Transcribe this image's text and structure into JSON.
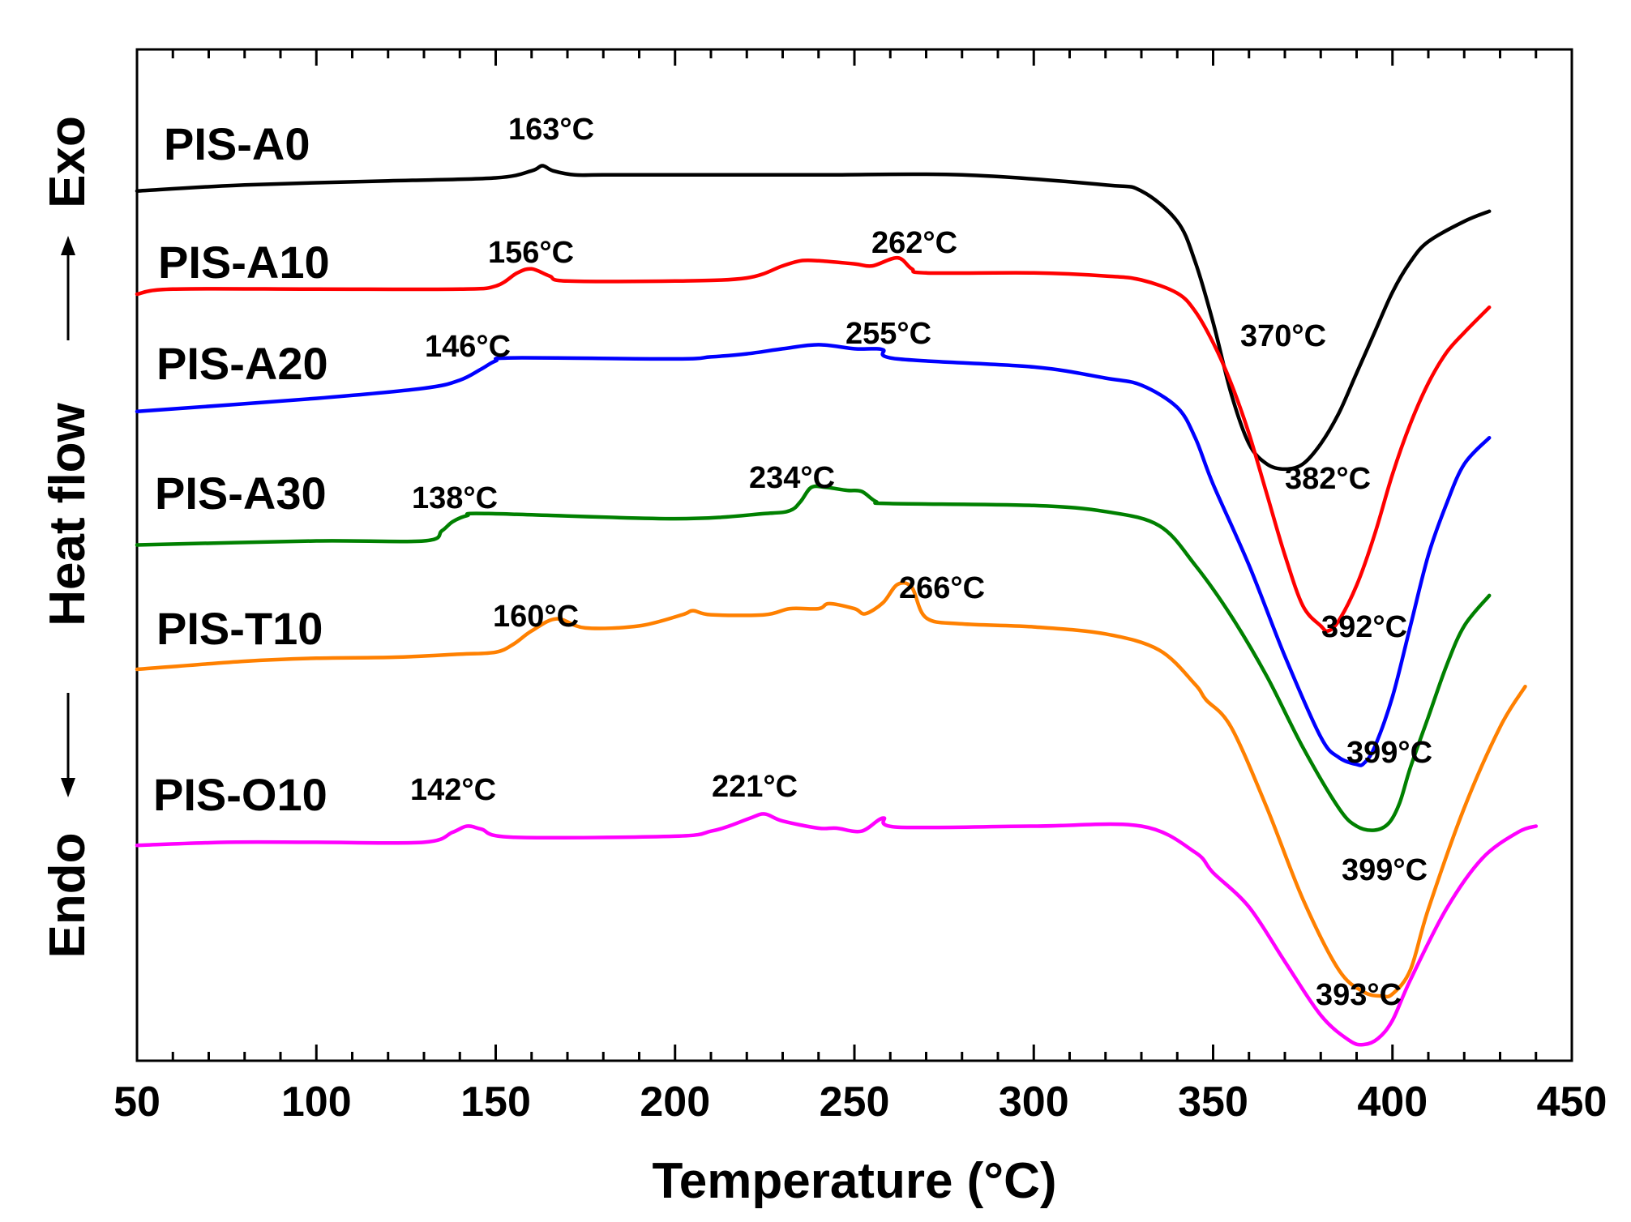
{
  "chart_data": {
    "type": "line",
    "title": "",
    "xlabel": "Temperature (°C)",
    "ylabel": "Heat flow",
    "exo_label": "Exo",
    "endo_label": "Endo",
    "xlim": [
      50,
      450
    ],
    "xticks": [
      50,
      100,
      150,
      200,
      250,
      300,
      350,
      400,
      450
    ],
    "xtick_labels": [
      "50",
      "100",
      "150",
      "200",
      "250",
      "300",
      "350",
      "400",
      "450"
    ],
    "ylim": [
      0,
      100
    ],
    "grid": false,
    "series": [
      {
        "name": "PIS-A0",
        "color": "#000000",
        "x": [
          50,
          80,
          120,
          150,
          160,
          163,
          166,
          172,
          180,
          200,
          240,
          280,
          320,
          330,
          340,
          345,
          350,
          355,
          360,
          365,
          370,
          375,
          380,
          385,
          390,
          395,
          400,
          405,
          410,
          420,
          427
        ],
        "y": [
          86,
          86.6,
          87,
          87.3,
          88,
          88.5,
          88,
          87.6,
          87.6,
          87.6,
          87.6,
          87.6,
          86.6,
          86,
          83,
          79,
          73,
          66,
          61,
          59,
          58.5,
          59,
          61,
          64,
          68,
          72,
          76,
          79,
          81,
          83,
          84
        ]
      },
      {
        "name": "PIS-A10",
        "color": "#ff0000",
        "x": [
          50,
          60,
          100,
          140,
          150,
          156,
          160,
          165,
          170,
          200,
          220,
          230,
          235,
          240,
          250,
          255,
          262,
          266,
          270,
          300,
          320,
          330,
          340,
          345,
          350,
          355,
          360,
          365,
          370,
          375,
          380,
          382,
          385,
          390,
          395,
          400,
          405,
          410,
          415,
          420,
          427
        ],
        "y": [
          75.8,
          76.3,
          76.3,
          76.3,
          76.6,
          77.9,
          78.3,
          77.6,
          77.1,
          77.1,
          77.4,
          78.6,
          79.1,
          79.1,
          78.8,
          78.6,
          79.4,
          78.3,
          77.9,
          77.9,
          77.6,
          77.2,
          75.9,
          74.1,
          71,
          67,
          62,
          56,
          50,
          45,
          43,
          42.5,
          43.5,
          47,
          52,
          58,
          63,
          67,
          70,
          72,
          74.5
        ]
      },
      {
        "name": "PIS-A20",
        "color": "#0000ff",
        "x": [
          50,
          100,
          130,
          140,
          146,
          150,
          155,
          200,
          210,
          220,
          230,
          240,
          250,
          255,
          258,
          262,
          300,
          320,
          330,
          340,
          345,
          350,
          360,
          370,
          380,
          385,
          390,
          392,
          395,
          400,
          405,
          410,
          415,
          420,
          427
        ],
        "y": [
          64.2,
          65.5,
          66.5,
          67.3,
          68.4,
          69.2,
          69.5,
          69.4,
          69.6,
          69.9,
          70.4,
          70.8,
          70.4,
          70.4,
          70.3,
          69.4,
          68.6,
          67.5,
          66.8,
          64.6,
          61.6,
          57,
          49,
          40,
          32,
          30,
          29.3,
          29.4,
          31,
          36,
          43,
          50,
          55,
          59,
          61.6
        ]
      },
      {
        "name": "PIS-A30",
        "color": "#008000",
        "x": [
          50,
          100,
          130,
          135,
          138,
          142,
          148,
          200,
          225,
          232,
          235,
          238,
          242,
          248,
          252,
          256,
          260,
          300,
          320,
          335,
          345,
          355,
          365,
          375,
          385,
          390,
          395,
          399,
          402,
          405,
          410,
          415,
          420,
          427
        ],
        "y": [
          51,
          51.4,
          51.4,
          52.4,
          53.3,
          53.9,
          54.1,
          53.6,
          54.1,
          54.4,
          55.3,
          56.7,
          56.7,
          56.4,
          56.3,
          55.3,
          55.1,
          54.9,
          54.3,
          52.9,
          49,
          44,
          38,
          31,
          25,
          23.2,
          22.8,
          23.5,
          25.5,
          29,
          34,
          39,
          43,
          46
        ]
      },
      {
        "name": "PIS-T10",
        "color": "#ff8000",
        "x": [
          50,
          80,
          100,
          122,
          140,
          150,
          155,
          160,
          167,
          175,
          190,
          202,
          205,
          210,
          225,
          232,
          240,
          243,
          250,
          253,
          258,
          262,
          266,
          270,
          280,
          300,
          320,
          335,
          345,
          348,
          355,
          365,
          375,
          385,
          392,
          397,
          400,
          405,
          410,
          420,
          430,
          437
        ],
        "y": [
          38.7,
          39.5,
          39.8,
          39.9,
          40.2,
          40.4,
          41.2,
          42.5,
          43.7,
          42.8,
          43,
          44.1,
          44.5,
          44.1,
          44.1,
          44.7,
          44.7,
          45.2,
          44.7,
          44.2,
          45.3,
          47.1,
          46.8,
          43.8,
          43.2,
          42.9,
          42.2,
          40.6,
          37.2,
          35.7,
          33,
          25,
          16,
          9,
          6.8,
          6.4,
          6.6,
          9,
          15,
          25,
          33,
          37
        ]
      },
      {
        "name": "PIS-O10",
        "color": "#ff00ff",
        "x": [
          50,
          75,
          100,
          130,
          138,
          142,
          146,
          155,
          200,
          210,
          215,
          221,
          225,
          230,
          240,
          245,
          252,
          258,
          262,
          300,
          330,
          345,
          350,
          360,
          370,
          380,
          388,
          392,
          396,
          400,
          405,
          415,
          425,
          435,
          440
        ],
        "y": [
          21.3,
          21.6,
          21.6,
          21.6,
          22.6,
          23.2,
          22.9,
          22.1,
          22.2,
          22.7,
          23.2,
          24,
          24.4,
          23.7,
          23,
          23,
          22.7,
          24,
          23.1,
          23.2,
          23.2,
          20.6,
          18.6,
          15.2,
          9.8,
          4.5,
          2,
          1.6,
          2.2,
          4,
          8,
          15,
          20,
          22.6,
          23.2
        ]
      }
    ],
    "series_labels": [
      {
        "series": "PIS-A0",
        "text": "PIS-A0"
      },
      {
        "series": "PIS-A10",
        "text": "PIS-A10"
      },
      {
        "series": "PIS-A20",
        "text": "PIS-A20"
      },
      {
        "series": "PIS-A30",
        "text": "PIS-A30"
      },
      {
        "series": "PIS-T10",
        "text": "PIS-T10"
      },
      {
        "series": "PIS-O10",
        "text": "PIS-O10"
      }
    ],
    "annotations": [
      {
        "text": "163°C",
        "series": "PIS-A0"
      },
      {
        "text": "370°C",
        "series": "PIS-A0"
      },
      {
        "text": "156°C",
        "series": "PIS-A10"
      },
      {
        "text": "262°C",
        "series": "PIS-A10"
      },
      {
        "text": "382°C",
        "series": "PIS-A10"
      },
      {
        "text": "146°C",
        "series": "PIS-A20"
      },
      {
        "text": "255°C",
        "series": "PIS-A20"
      },
      {
        "text": "392°C",
        "series": "PIS-A20"
      },
      {
        "text": "138°C",
        "series": "PIS-A30"
      },
      {
        "text": "234°C",
        "series": "PIS-A30"
      },
      {
        "text": "399°C",
        "series": "PIS-A30"
      },
      {
        "text": "160°C",
        "series": "PIS-T10"
      },
      {
        "text": "266°C",
        "series": "PIS-T10"
      },
      {
        "text": "399°C",
        "series": "PIS-T10"
      },
      {
        "text": "142°C",
        "series": "PIS-O10"
      },
      {
        "text": "221°C",
        "series": "PIS-O10"
      },
      {
        "text": "393°C",
        "series": "PIS-O10"
      }
    ]
  }
}
